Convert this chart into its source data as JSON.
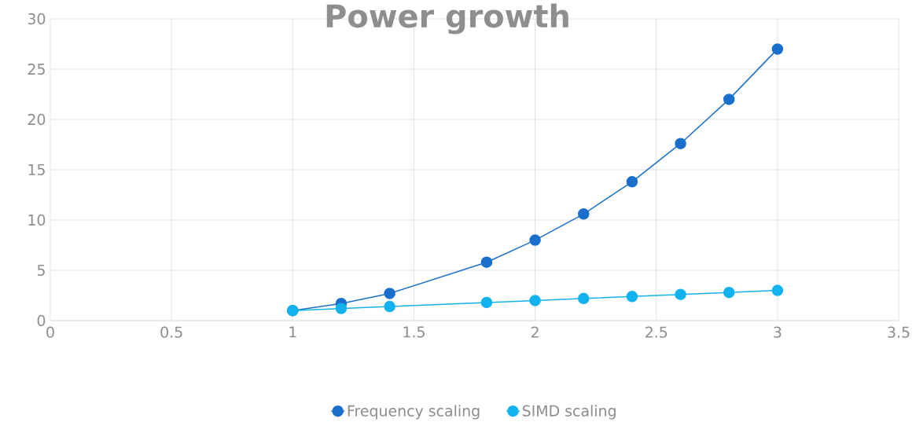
{
  "chart_data": {
    "type": "line",
    "title": "Power growth",
    "x": [
      1,
      1.2,
      1.4,
      1.8,
      2,
      2.2,
      2.4,
      2.6,
      2.8,
      3
    ],
    "series": [
      {
        "name": "Frequency scaling",
        "color": "#1a6fcc",
        "values": [
          1,
          1.7,
          2.7,
          5.8,
          8,
          10.6,
          13.8,
          17.6,
          22,
          27
        ]
      },
      {
        "name": "SIMD scaling",
        "color": "#12b2ef",
        "values": [
          1,
          1.2,
          1.4,
          1.8,
          2,
          2.2,
          2.4,
          2.6,
          2.8,
          3
        ]
      }
    ],
    "xlim": [
      0,
      3.5
    ],
    "xticks": [
      0,
      0.5,
      1,
      1.5,
      2,
      2.5,
      3,
      3.5
    ],
    "ylim": [
      0,
      30
    ],
    "yticks": [
      0,
      5,
      10,
      15,
      20,
      25,
      30
    ],
    "grid": true,
    "legend": "bottom",
    "marker": "circle",
    "line_style": "solid"
  }
}
